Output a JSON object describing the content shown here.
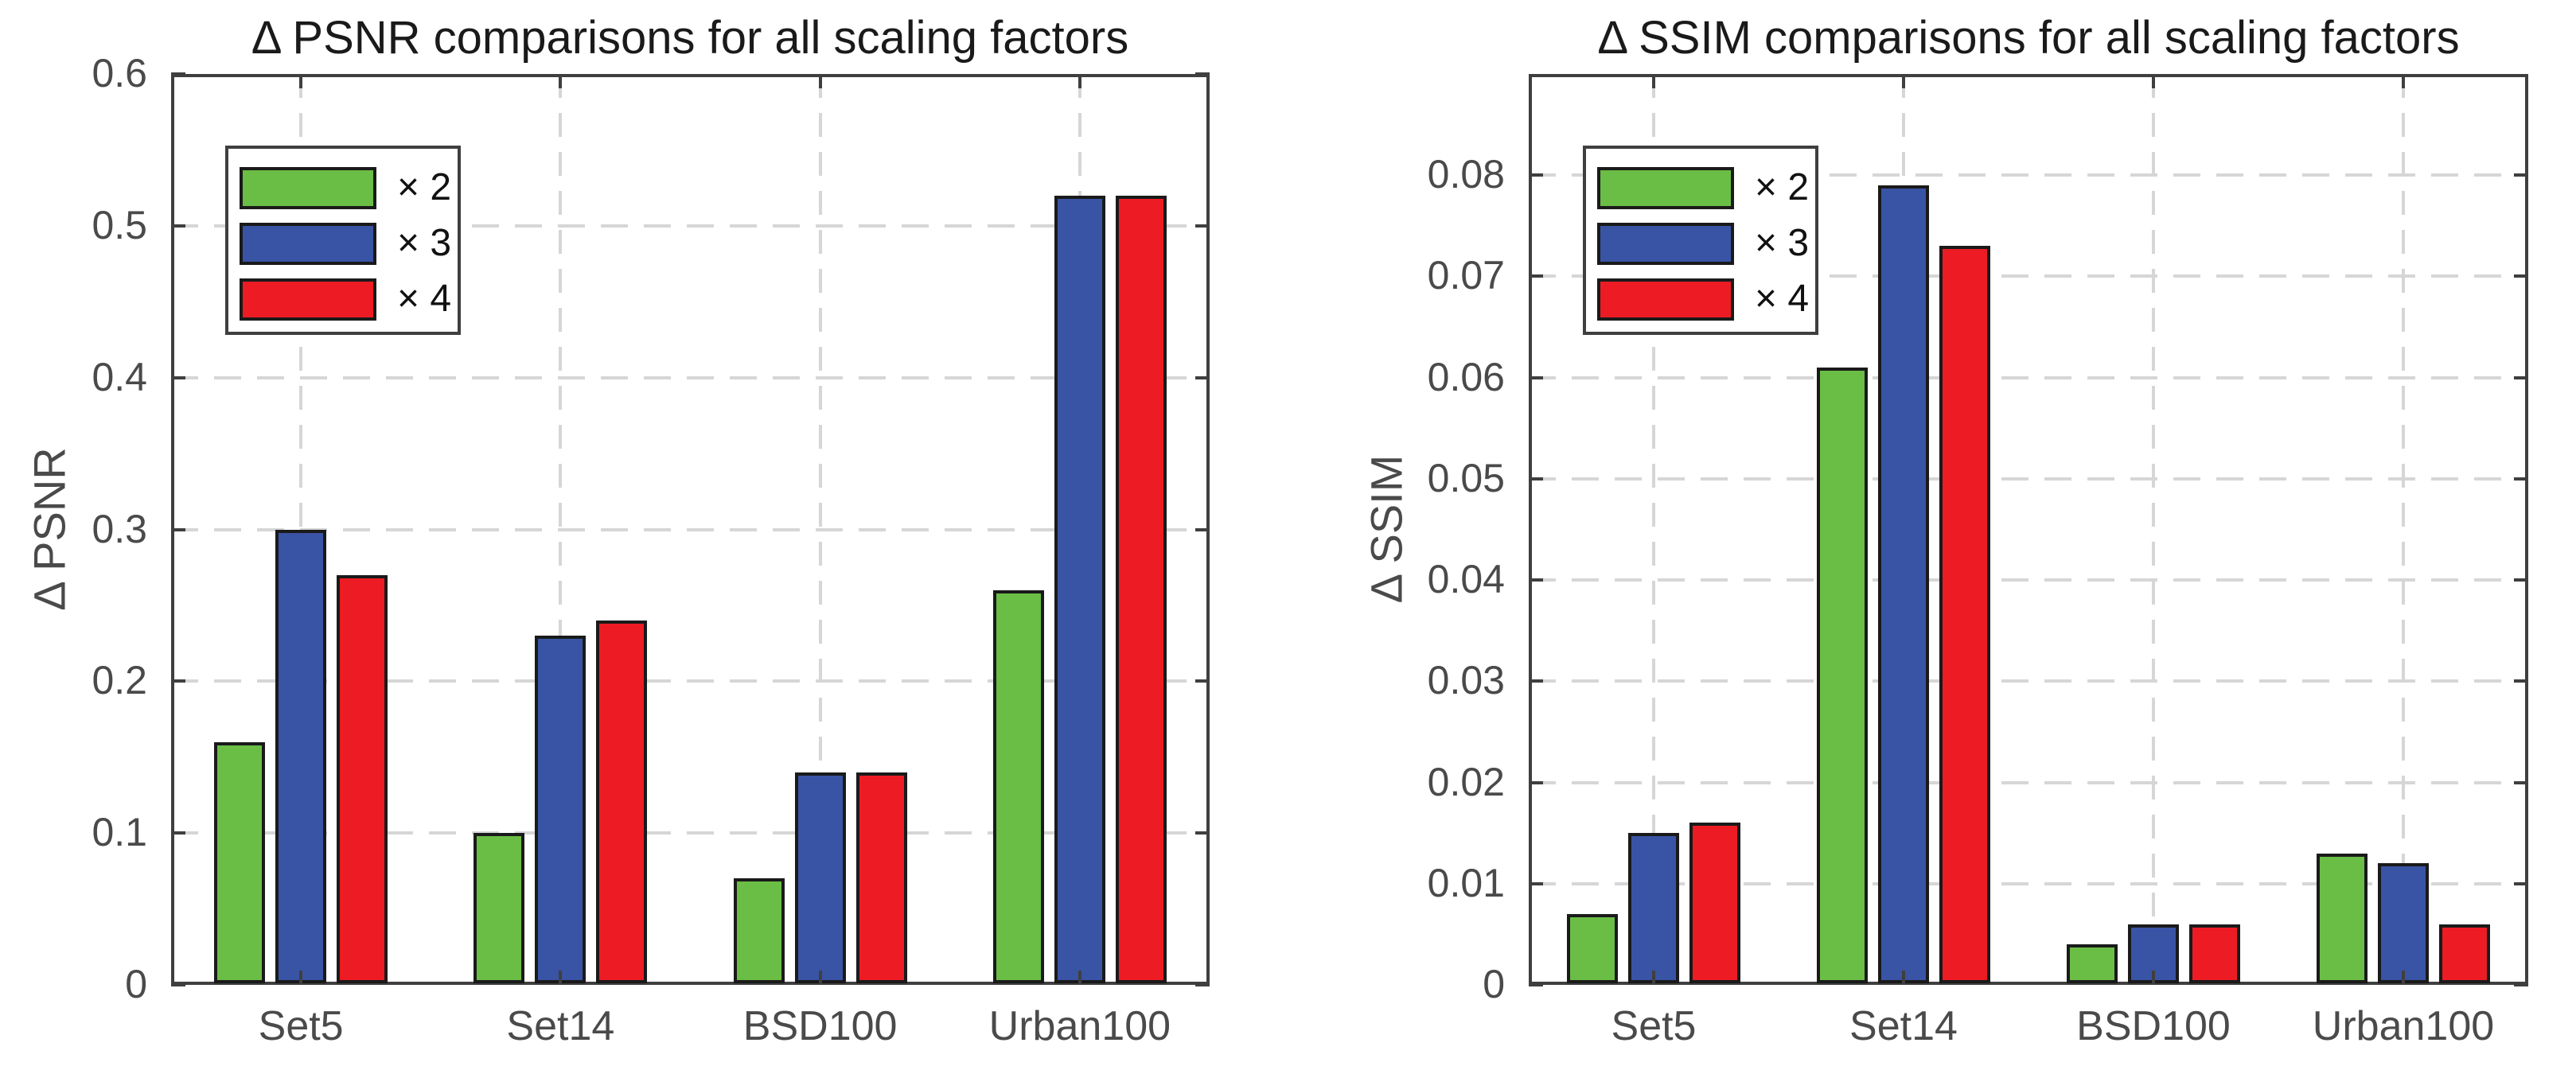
{
  "figure": {
    "background_color": "#ffffff",
    "grid_color": "#d6d6d6",
    "axis_color": "#3f3f3f",
    "text_color": "#4a4a4a",
    "title_color": "#1a1a1a",
    "bar_edge_color": "#1a1a1a"
  },
  "chart_data": [
    {
      "type": "bar",
      "title": "Δ PSNR comparisons for all scaling factors",
      "xlabel": "",
      "ylabel": "Δ PSNR",
      "categories": [
        "Set5",
        "Set14",
        "BSD100",
        "Urban100"
      ],
      "series": [
        {
          "name": "× 2",
          "color": "#6ABD45",
          "values": [
            0.16,
            0.1,
            0.07,
            0.26
          ]
        },
        {
          "name": "× 3",
          "color": "#3954A5",
          "values": [
            0.3,
            0.23,
            0.14,
            0.52
          ]
        },
        {
          "name": "× 4",
          "color": "#ED1C24",
          "values": [
            0.27,
            0.24,
            0.14,
            0.52
          ]
        }
      ],
      "ylim": [
        0,
        0.6
      ],
      "yticks": [
        0,
        0.1,
        0.2,
        0.3,
        0.4,
        0.5,
        0.6
      ],
      "ytick_labels": [
        "0",
        "0.1",
        "0.2",
        "0.3",
        "0.4",
        "0.5",
        "0.6"
      ],
      "grid": "dashed",
      "legend_position": "upper-left",
      "legend_labels": [
        "× 2",
        "× 3",
        "× 4"
      ]
    },
    {
      "type": "bar",
      "title": "Δ SSIM comparisons for all scaling factors",
      "xlabel": "",
      "ylabel": "Δ SSIM",
      "categories": [
        "Set5",
        "Set14",
        "BSD100",
        "Urban100"
      ],
      "series": [
        {
          "name": "× 2",
          "color": "#6ABD45",
          "values": [
            0.007,
            0.061,
            0.004,
            0.013
          ]
        },
        {
          "name": "× 3",
          "color": "#3954A5",
          "values": [
            0.015,
            0.079,
            0.006,
            0.012
          ]
        },
        {
          "name": "× 4",
          "color": "#ED1C24",
          "values": [
            0.016,
            0.073,
            0.006,
            0.006
          ]
        }
      ],
      "ylim": [
        0,
        0.09
      ],
      "yticks": [
        0,
        0.01,
        0.02,
        0.03,
        0.04,
        0.05,
        0.06,
        0.07,
        0.08
      ],
      "ytick_labels": [
        "0",
        "0.01",
        "0.02",
        "0.03",
        "0.04",
        "0.05",
        "0.06",
        "0.07",
        "0.08"
      ],
      "grid": "dashed",
      "legend_position": "upper-left",
      "legend_labels": [
        "× 2",
        "× 3",
        "× 4"
      ]
    }
  ]
}
